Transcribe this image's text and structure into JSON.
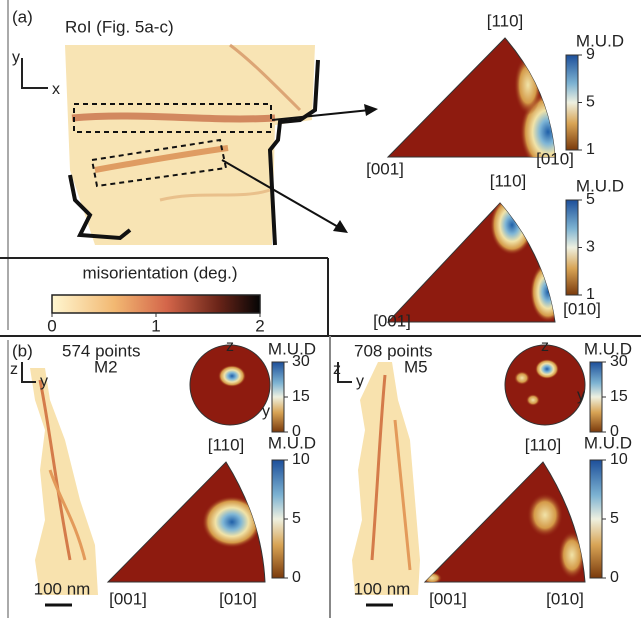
{
  "panel_a": {
    "label": "(a)",
    "roi_title": "RoI (Fig. 5a-c)",
    "axis_y": "y",
    "axis_x": "x",
    "ipf": [
      {
        "top": "[110]",
        "left": "[001]",
        "right": "[010]",
        "scale_title": "M.U.D",
        "scale_ticks": [
          9,
          5,
          1
        ]
      },
      {
        "top": "[110]",
        "left": "[001]",
        "right": "[010]",
        "scale_title": "M.U.D",
        "scale_ticks": [
          5,
          3,
          1
        ]
      }
    ],
    "misorientation": {
      "title": "misorientation (deg.)",
      "ticks": [
        0,
        1,
        2
      ]
    }
  },
  "panel_b": {
    "label": "(b)",
    "maps": [
      {
        "points": "574 points",
        "name": "M2",
        "axis_z": "z",
        "axis_y": "y",
        "pole_figure": {
          "z": "z",
          "y": "y",
          "scale_title": "M.U.D",
          "scale_ticks": [
            30,
            15,
            0
          ]
        },
        "ipf": {
          "top": "[110]",
          "left": "[001]",
          "right": "[010]",
          "scale_title": "M.U.D",
          "scale_ticks": [
            10,
            5,
            0
          ]
        },
        "scale_bar": "100 nm"
      },
      {
        "points": "708 points",
        "name": "M5",
        "axis_z": "z",
        "axis_y": "y",
        "pole_figure": {
          "z": "z",
          "y": "y",
          "scale_title": "M.U.D",
          "scale_ticks": [
            30,
            15,
            0
          ]
        },
        "ipf": {
          "top": "[110]",
          "left": "[001]",
          "right": "[010]",
          "scale_title": "M.U.D",
          "scale_ticks": [
            10,
            5,
            0
          ]
        },
        "scale_bar": "100 nm"
      }
    ]
  }
}
